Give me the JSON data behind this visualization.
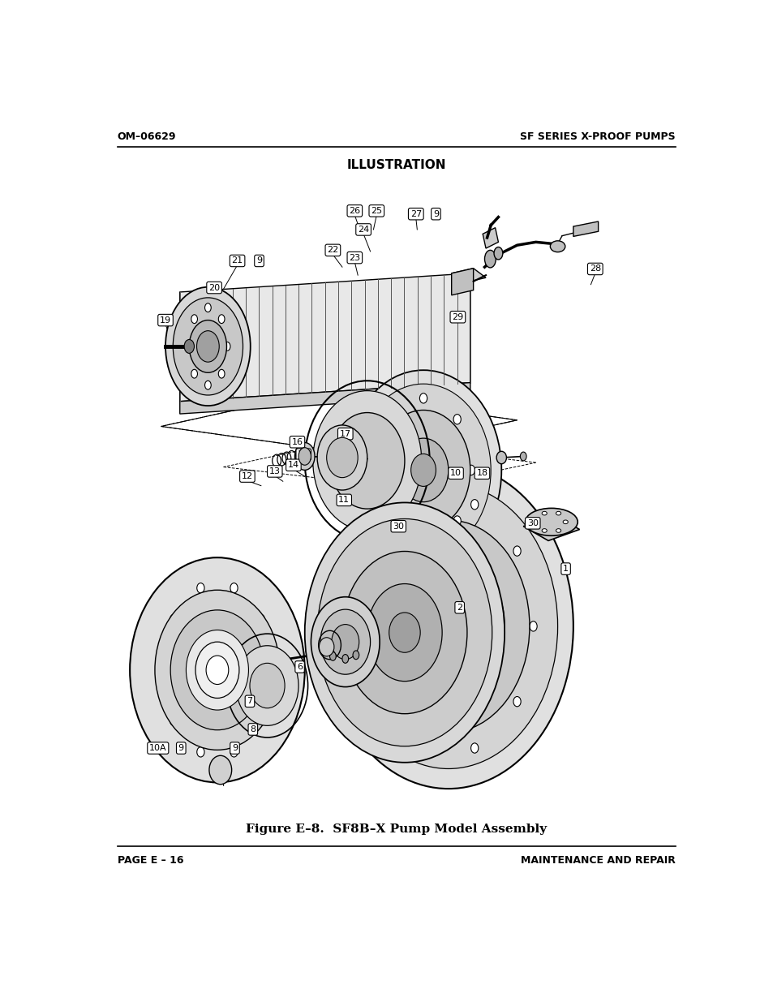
{
  "title_top": "ILLUSTRATION",
  "header_left": "OM–06629",
  "header_right": "SF SERIES X-PROOF PUMPS",
  "footer_left": "PAGE E – 16",
  "footer_right": "MAINTENANCE AND REPAIR",
  "caption": "Figure E–8.  SF8B–X Pump Model Assembly",
  "background_color": "#ffffff",
  "figsize": [
    9.54,
    12.35
  ],
  "dpi": 100
}
